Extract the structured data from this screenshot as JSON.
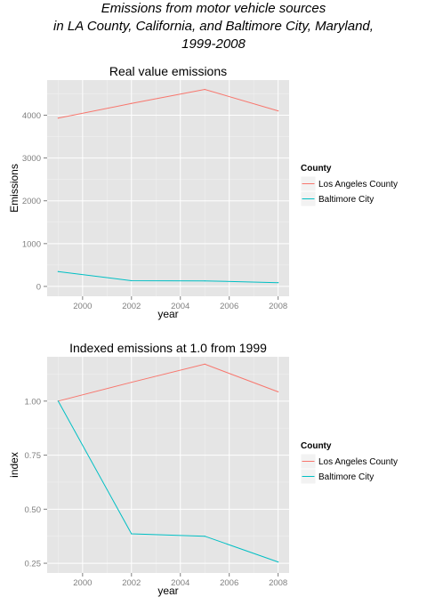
{
  "figure": {
    "title_lines": [
      "Emissions from motor vehicle sources",
      "in LA County, California, and Baltimore City, Maryland,",
      "1999-2008"
    ]
  },
  "chart_data": [
    {
      "type": "line",
      "title": "Real value emissions",
      "xlabel": "year",
      "ylabel": "Emissions",
      "x": [
        1999,
        2002,
        2005,
        2008
      ],
      "xticks": [
        2000,
        2002,
        2004,
        2006,
        2008
      ],
      "yticks": [
        0,
        1000,
        2000,
        3000,
        4000
      ],
      "xlim": [
        1998.55,
        2008.45
      ],
      "ylim": [
        -230,
        4820
      ],
      "grid": true,
      "legend": {
        "title": "County",
        "position": "right"
      },
      "series": [
        {
          "name": "Los Angeles County",
          "color": "#F8766D",
          "values": [
            3931,
            4274,
            4602,
            4101
          ]
        },
        {
          "name": "Baltimore City",
          "color": "#00BFC4",
          "values": [
            347,
            134,
            130,
            89
          ]
        }
      ]
    },
    {
      "type": "line",
      "title": "Indexed emissions at 1.0 from 1999",
      "xlabel": "year",
      "ylabel": "index",
      "x": [
        1999,
        2002,
        2005,
        2008
      ],
      "xticks": [
        2000,
        2002,
        2004,
        2006,
        2008
      ],
      "yticks": [
        0.25,
        0.5,
        0.75,
        1.0
      ],
      "ytick_labels": [
        "0.25",
        "0.50",
        "0.75",
        "1.00"
      ],
      "xlim": [
        1998.55,
        2008.45
      ],
      "ylim": [
        0.205,
        1.205
      ],
      "grid": true,
      "legend": {
        "title": "County",
        "position": "right"
      },
      "series": [
        {
          "name": "Los Angeles County",
          "color": "#F8766D",
          "values": [
            1.0,
            1.087,
            1.171,
            1.043
          ]
        },
        {
          "name": "Baltimore City",
          "color": "#00BFC4",
          "values": [
            1.0,
            0.386,
            0.375,
            0.256
          ]
        }
      ]
    }
  ]
}
